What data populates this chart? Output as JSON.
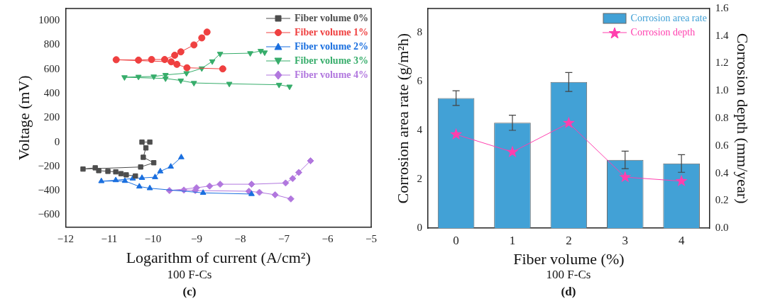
{
  "chart_data": [
    {
      "type": "line",
      "xlabel": "Logarithm of current (A/cm²)",
      "ylabel": "Voltage (mV)",
      "xlim": [
        -12,
        -5
      ],
      "xticks": [
        -12,
        -11,
        -10,
        -9,
        -8,
        -7,
        -6,
        -5
      ],
      "ylim": [
        -700,
        1100
      ],
      "yticks": [
        -600,
        -400,
        -200,
        0,
        200,
        400,
        600,
        800,
        1000
      ],
      "grid": false,
      "legend": "top right",
      "annotations": [
        "100 F-Cs",
        "(c)"
      ],
      "series": [
        {
          "name": "Fiber volume 0%",
          "color": "#4d4d4d",
          "marker": "square",
          "x": [
            -10.4,
            -10.61,
            -10.73,
            -10.85,
            -11.03,
            -11.24,
            -11.32,
            -11.6,
            -10.28,
            -9.98,
            -10.22,
            -10.16,
            -10.25,
            -10.07
          ],
          "values": [
            -279,
            -270,
            -260,
            -245,
            -241,
            -235,
            -212,
            -222,
            -205,
            -170,
            -125,
            -48,
            0,
            0
          ]
        },
        {
          "name": "Fiber volume 1%",
          "color": "#ef4040",
          "marker": "circle",
          "x": [
            -8.4,
            -9.22,
            -9.45,
            -9.58,
            -10.84,
            -10.33,
            -10.03,
            -9.73,
            -9.5,
            -9.36,
            -9.06,
            -8.88,
            -8.76
          ],
          "values": [
            603,
            612,
            640,
            661,
            678,
            675,
            680,
            680,
            715,
            743,
            800,
            858,
            906
          ]
        },
        {
          "name": "Fiber volume 2%",
          "color": "#1a6fdf",
          "marker": "triangle",
          "x": [
            -7.74,
            -8.85,
            -10.07,
            -10.31,
            -10.64,
            -11.18,
            -10.85,
            -10.46,
            -10.25,
            -9.95,
            -9.83,
            -9.59,
            -9.35
          ],
          "values": [
            -428,
            -418,
            -380,
            -366,
            -320,
            -322,
            -314,
            -300,
            -295,
            -289,
            -241,
            -202,
            -125
          ]
        },
        {
          "name": "Fiber volume 3%",
          "color": "#37ad6b",
          "marker": "triangle-down",
          "x": [
            -6.87,
            -7.11,
            -8.25,
            -9.06,
            -9.36,
            -9.71,
            -10.65,
            -10.33,
            -9.98,
            -9.71,
            -9.23,
            -8.88,
            -8.64,
            -8.46,
            -7.77,
            -7.53,
            -7.44
          ],
          "values": [
            457,
            472,
            480,
            487,
            507,
            524,
            534,
            538,
            540,
            553,
            568,
            607,
            665,
            727,
            732,
            751,
            738
          ]
        },
        {
          "name": "Fiber volume 4%",
          "color": "#b177de",
          "marker": "diamond",
          "x": [
            -6.84,
            -7.2,
            -7.56,
            -7.8,
            -9.03,
            -9.29,
            -9.62,
            -9.0,
            -8.7,
            -8.46,
            -7.74,
            -6.96,
            -6.8,
            -6.66,
            -6.39
          ],
          "values": [
            -468,
            -434,
            -414,
            -405,
            -399,
            -395,
            -399,
            -376,
            -362,
            -347,
            -347,
            -337,
            -300,
            -250,
            -154
          ]
        }
      ]
    },
    {
      "type": "bar",
      "categories": [
        "0",
        "1",
        "2",
        "3",
        "4"
      ],
      "xlabel": "Fiber volume (%)",
      "ylabel": "Corrosion area rate (g/m²h)",
      "y2label": "Corrosion depth (mm/year)",
      "ylim": [
        0,
        9
      ],
      "yticks": [
        0,
        2,
        4,
        6,
        8
      ],
      "y2lim": [
        0,
        1.6
      ],
      "y2ticks": [
        {
          "value": 0,
          "label": "0.0"
        },
        {
          "value": 0.2,
          "label": "0.2"
        },
        {
          "value": 0.4,
          "label": "0.4"
        },
        {
          "value": 0.6,
          "label": "0.6"
        },
        {
          "value": 0.8,
          "label": "0.8"
        },
        {
          "value": 1,
          "label": "1.0"
        },
        {
          "value": 1.2,
          "label": "1.2"
        },
        {
          "value": 1.4,
          "label": "1.4"
        },
        {
          "value": 1.6,
          "label": "1.6"
        }
      ],
      "grid": false,
      "legend": "top right",
      "annotations": [
        "100 F-Cs",
        "(d)"
      ],
      "series": [
        {
          "name": "Corrosion area rate",
          "color": "#42a1d6",
          "values": [
            5.33,
            4.32,
            5.99,
            2.8,
            2.65
          ],
          "errors": [
            0.3,
            0.31,
            0.39,
            0.36,
            0.36
          ]
        },
        {
          "name": "Corrosion depth",
          "type": "line",
          "axis": "y2",
          "color": "#ff3fae",
          "marker": "star",
          "values": [
            0.683,
            0.555,
            0.766,
            0.372,
            0.343
          ]
        }
      ]
    }
  ]
}
